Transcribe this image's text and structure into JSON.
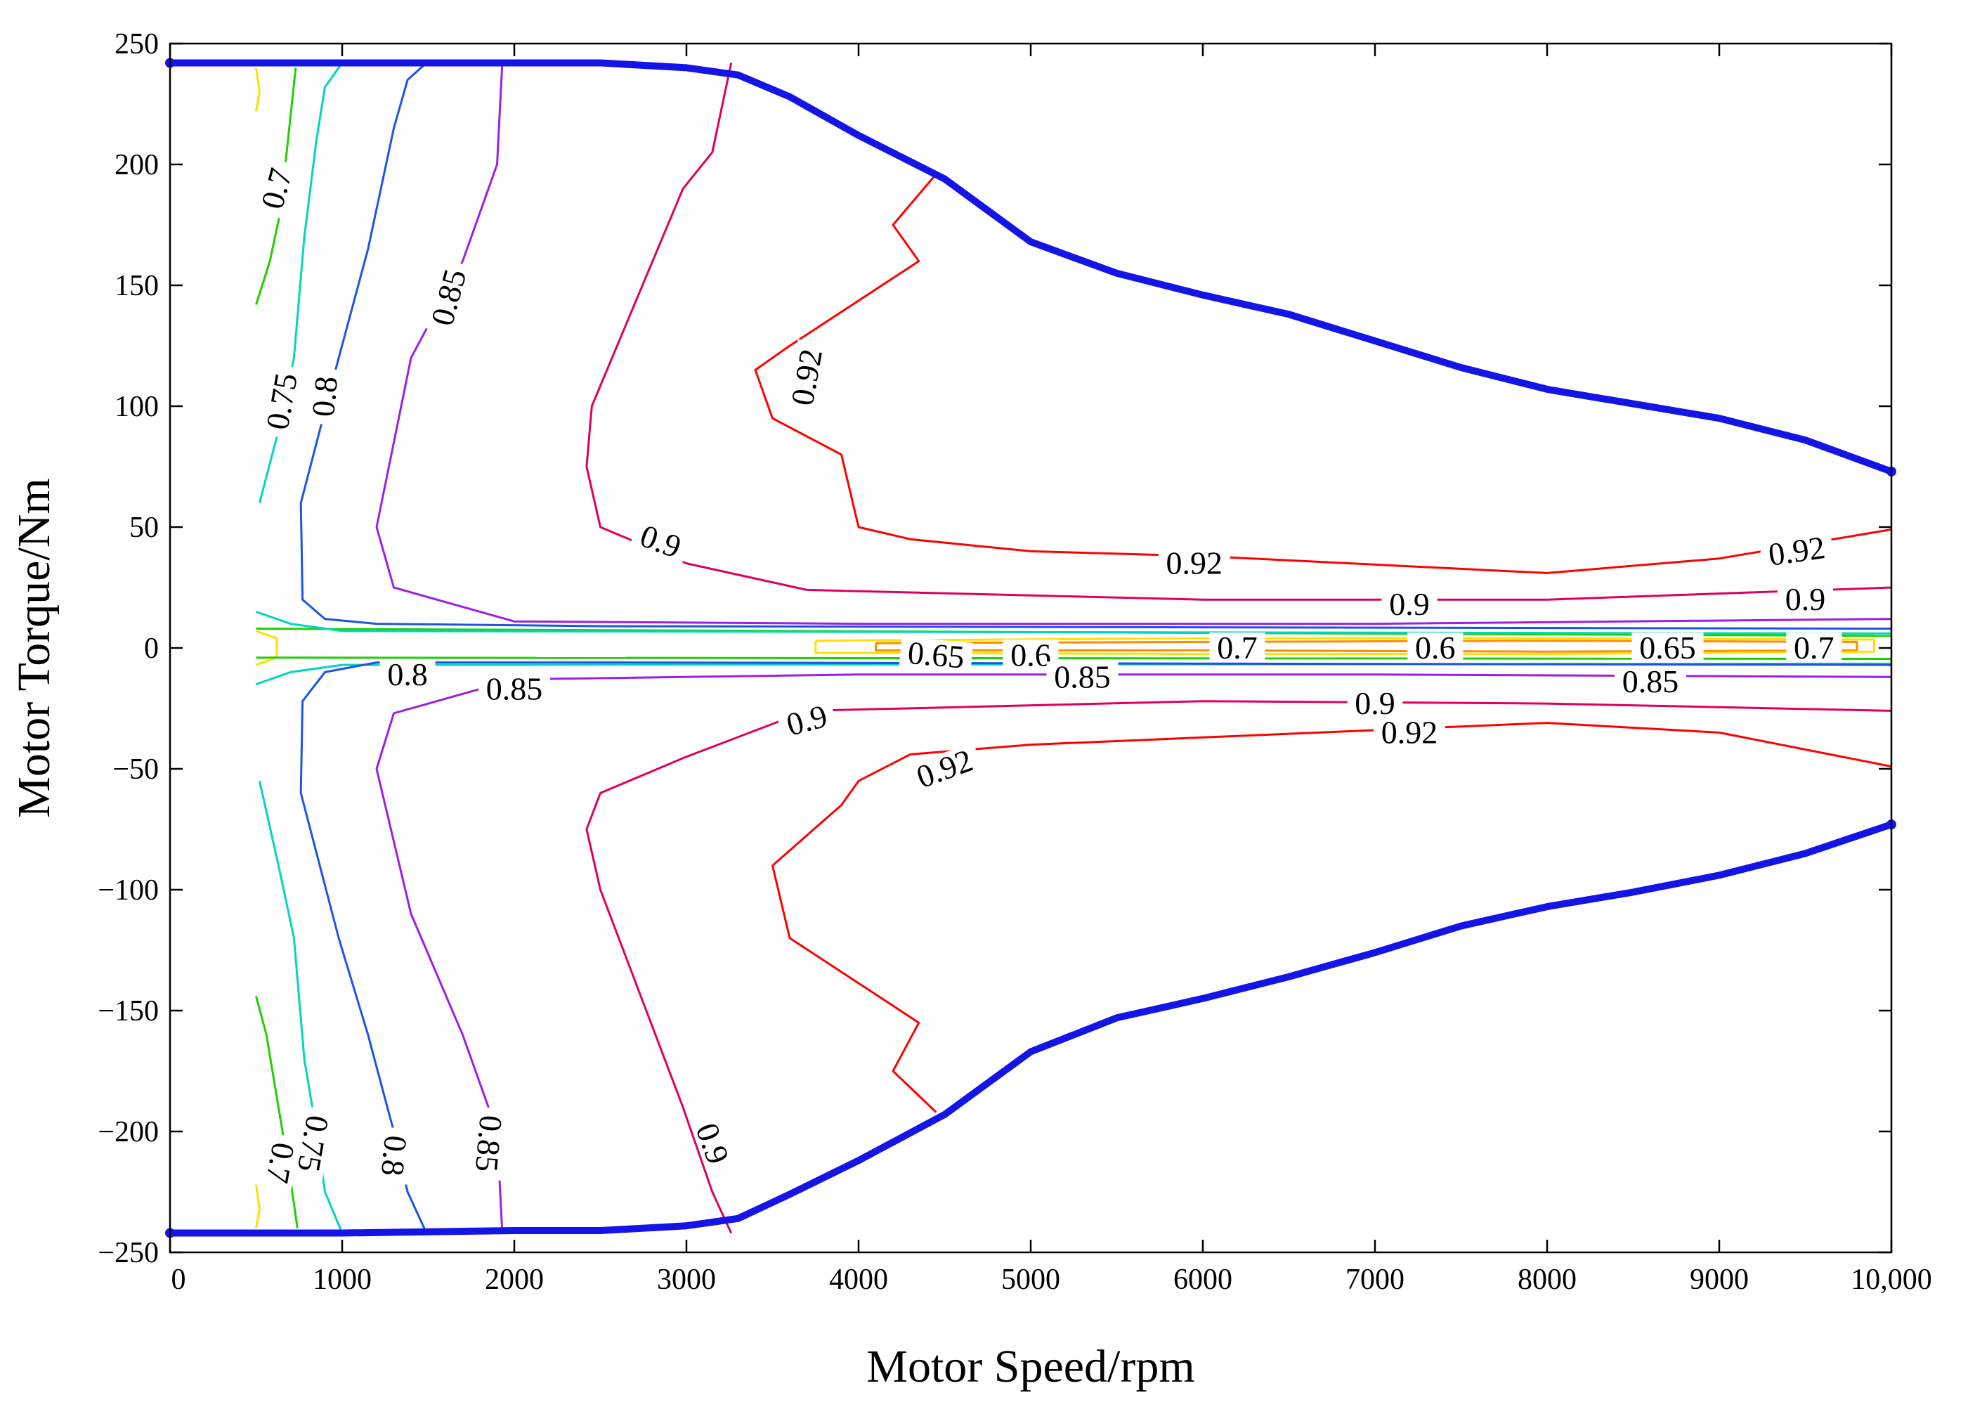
{
  "chart_data": {
    "type": "contour",
    "title": "",
    "xlabel": "Motor Speed/rpm",
    "ylabel": "Motor Torque/Nm",
    "xlim": [
      0,
      10000
    ],
    "ylim": [
      -250,
      250
    ],
    "grid": false,
    "x_ticks": [
      0,
      1000,
      2000,
      3000,
      4000,
      5000,
      6000,
      7000,
      8000,
      9000,
      10000
    ],
    "x_tick_labels": [
      "0",
      "1000",
      "2000",
      "3000",
      "4000",
      "5000",
      "6000",
      "7000",
      "8000",
      "9000",
      "10,000"
    ],
    "y_ticks": [
      250,
      200,
      150,
      100,
      50,
      0,
      -50,
      -100,
      -150,
      -200,
      -250
    ],
    "y_tick_labels": [
      "250",
      "200",
      "150",
      "100",
      "50",
      "0",
      "−50",
      "−100",
      "−150",
      "−200",
      "−250"
    ],
    "boundary": {
      "name": "peak torque envelope",
      "color": "#1414e6",
      "upper": [
        [
          0,
          242
        ],
        [
          1000,
          242
        ],
        [
          2000,
          242
        ],
        [
          2500,
          242
        ],
        [
          3000,
          240
        ],
        [
          3300,
          237
        ],
        [
          3600,
          228
        ],
        [
          4000,
          212
        ],
        [
          4500,
          194
        ],
        [
          5000,
          168
        ],
        [
          5500,
          155
        ],
        [
          6000,
          146
        ],
        [
          6500,
          138
        ],
        [
          7000,
          127
        ],
        [
          7500,
          116
        ],
        [
          8000,
          107
        ],
        [
          8500,
          101
        ],
        [
          9000,
          95
        ],
        [
          9500,
          86
        ],
        [
          10000,
          73
        ]
      ],
      "lower": [
        [
          0,
          -242
        ],
        [
          1000,
          -242
        ],
        [
          2000,
          -241
        ],
        [
          2500,
          -241
        ],
        [
          3000,
          -239
        ],
        [
          3300,
          -236
        ],
        [
          3600,
          -226
        ],
        [
          4000,
          -212
        ],
        [
          4500,
          -193
        ],
        [
          5000,
          -167
        ],
        [
          5500,
          -153
        ],
        [
          6000,
          -145
        ],
        [
          6500,
          -136
        ],
        [
          7000,
          -126
        ],
        [
          7500,
          -115
        ],
        [
          8000,
          -107
        ],
        [
          8500,
          -101
        ],
        [
          9000,
          -94
        ],
        [
          9500,
          -85
        ],
        [
          10000,
          -73
        ]
      ]
    },
    "contours": [
      {
        "level": 0.6,
        "color": "#ff8c00",
        "segments": [
          [
            [
              4100,
              2
            ],
            [
              6000,
              2.5
            ],
            [
              8000,
              3
            ],
            [
              9800,
              2.5
            ],
            [
              9800,
              -1
            ],
            [
              8000,
              -1.5
            ],
            [
              6000,
              -1
            ],
            [
              4100,
              -1
            ],
            [
              4100,
              2
            ]
          ]
        ]
      },
      {
        "level": 0.65,
        "color": "#ffe000",
        "segments": [
          [
            [
              3750,
              3
            ],
            [
              6000,
              4
            ],
            [
              8000,
              4
            ],
            [
              9900,
              3.5
            ],
            [
              9900,
              -1.5
            ],
            [
              8000,
              -2.5
            ],
            [
              6000,
              -2.5
            ],
            [
              3750,
              -2
            ],
            [
              3750,
              3
            ]
          ],
          [
            [
              500,
              240
            ],
            [
              520,
              230
            ],
            [
              500,
              222
            ]
          ],
          [
            [
              500,
              7
            ],
            [
              620,
              4
            ],
            [
              620,
              -4
            ],
            [
              500,
              -7
            ]
          ],
          [
            [
              500,
              -222
            ],
            [
              520,
              -232
            ],
            [
              500,
              -240
            ]
          ]
        ]
      },
      {
        "level": 0.7,
        "color": "#20d000",
        "segments": [
          [
            [
              730,
              240
            ],
            [
              700,
              220
            ],
            [
              640,
              180
            ],
            [
              580,
              160
            ],
            [
              500,
              142
            ]
          ],
          [
            [
              500,
              8
            ],
            [
              10000,
              5
            ]
          ],
          [
            [
              500,
              -4
            ],
            [
              10000,
              -4.5
            ]
          ],
          [
            [
              500,
              -144
            ],
            [
              560,
              -160
            ],
            [
              630,
              -190
            ],
            [
              700,
              -220
            ],
            [
              740,
              -240
            ]
          ]
        ]
      },
      {
        "level": 0.75,
        "color": "#00d6c0",
        "segments": [
          [
            [
              1000,
              242
            ],
            [
              900,
              232
            ],
            [
              850,
              210
            ],
            [
              780,
              170
            ],
            [
              720,
              120
            ],
            [
              630,
              90
            ],
            [
              520,
              60
            ]
          ],
          [
            [
              500,
              15
            ],
            [
              700,
              10
            ],
            [
              1000,
              7
            ],
            [
              10000,
              6
            ]
          ],
          [
            [
              500,
              -15
            ],
            [
              700,
              -10
            ],
            [
              1000,
              -7
            ],
            [
              10000,
              -6.5
            ]
          ],
          [
            [
              520,
              -55
            ],
            [
              630,
              -90
            ],
            [
              720,
              -120
            ],
            [
              780,
              -170
            ],
            [
              850,
              -200
            ],
            [
              900,
              -225
            ],
            [
              1000,
              -242
            ]
          ]
        ]
      },
      {
        "level": 0.8,
        "color": "#1a55e6",
        "segments": [
          [
            [
              1490,
              242
            ],
            [
              1380,
              235
            ],
            [
              1300,
              215
            ],
            [
              1150,
              165
            ],
            [
              980,
              120
            ],
            [
              760,
              60
            ],
            [
              770,
              20
            ],
            [
              900,
              12
            ],
            [
              1200,
              10
            ],
            [
              2500,
              9
            ],
            [
              10000,
              8
            ]
          ],
          [
            [
              10000,
              -7
            ],
            [
              2500,
              -6
            ],
            [
              1200,
              -6
            ],
            [
              900,
              -10
            ],
            [
              770,
              -22
            ],
            [
              760,
              -60
            ],
            [
              980,
              -120
            ],
            [
              1150,
              -160
            ],
            [
              1300,
              -200
            ],
            [
              1380,
              -225
            ],
            [
              1490,
              -242
            ]
          ]
        ]
      },
      {
        "level": 0.85,
        "color": "#9a20e6",
        "segments": [
          [
            [
              1930,
              242
            ],
            [
              1900,
              200
            ],
            [
              1700,
              160
            ],
            [
              1400,
              120
            ],
            [
              1200,
              50
            ],
            [
              1300,
              25
            ],
            [
              2000,
              11
            ],
            [
              4000,
              10
            ],
            [
              7000,
              10
            ],
            [
              10000,
              12
            ]
          ],
          [
            [
              10000,
              -12
            ],
            [
              7000,
              -11
            ],
            [
              4000,
              -11
            ],
            [
              2000,
              -13
            ],
            [
              1300,
              -27
            ],
            [
              1200,
              -50
            ],
            [
              1400,
              -110
            ],
            [
              1700,
              -160
            ],
            [
              1900,
              -200
            ],
            [
              1930,
              -242
            ]
          ]
        ]
      },
      {
        "level": 0.9,
        "color": "#e0005c",
        "segments": [
          [
            [
              3260,
              242
            ],
            [
              3150,
              205
            ],
            [
              2980,
              190
            ],
            [
              2450,
              100
            ],
            [
              2420,
              75
            ],
            [
              2500,
              50
            ],
            [
              3000,
              35
            ],
            [
              3700,
              24
            ],
            [
              6000,
              20
            ],
            [
              8000,
              20
            ],
            [
              10000,
              25
            ]
          ],
          [
            [
              10000,
              -26
            ],
            [
              8000,
              -23
            ],
            [
              6000,
              -22
            ],
            [
              3700,
              -26
            ],
            [
              3000,
              -45
            ],
            [
              2500,
              -60
            ],
            [
              2420,
              -75
            ],
            [
              2500,
              -100
            ],
            [
              2980,
              -190
            ],
            [
              3150,
              -225
            ],
            [
              3260,
              -242
            ]
          ]
        ]
      },
      {
        "level": 0.92,
        "color": "#ff0000",
        "segments": [
          [
            [
              4450,
              196
            ],
            [
              4200,
              175
            ],
            [
              4350,
              160
            ],
            [
              3600,
              125
            ],
            [
              3400,
              115
            ],
            [
              3500,
              95
            ],
            [
              3900,
              80
            ],
            [
              4000,
              50
            ],
            [
              4300,
              45
            ],
            [
              5000,
              40
            ],
            [
              6000,
              38
            ],
            [
              8000,
              31
            ],
            [
              9000,
              37
            ],
            [
              10000,
              49
            ]
          ],
          [
            [
              10000,
              -49
            ],
            [
              9000,
              -35
            ],
            [
              8000,
              -31
            ],
            [
              6000,
              -37
            ],
            [
              5000,
              -40
            ],
            [
              4300,
              -44
            ],
            [
              4000,
              -55
            ],
            [
              3900,
              -65
            ],
            [
              3500,
              -90
            ],
            [
              3600,
              -120
            ],
            [
              4350,
              -155
            ],
            [
              4200,
              -175
            ],
            [
              4450,
              -192
            ]
          ]
        ]
      }
    ],
    "labels": [
      {
        "text": "0.6",
        "x": 7350,
        "y": 0,
        "angle": 0
      },
      {
        "text": "0.6",
        "x": 5000,
        "y": -3,
        "angle": 0
      },
      {
        "text": "0.65",
        "x": 4450,
        "y": -3,
        "angle": 5
      },
      {
        "text": "0.65",
        "x": 8700,
        "y": 0,
        "angle": 0
      },
      {
        "text": "0.7",
        "x": 6200,
        "y": 0,
        "angle": 0
      },
      {
        "text": "0.7",
        "x": 9550,
        "y": 0,
        "angle": 0
      },
      {
        "text": "0.7",
        "x": 620,
        "y": 190,
        "angle": -75
      },
      {
        "text": "0.7",
        "x": 640,
        "y": -213,
        "angle": 100
      },
      {
        "text": "0.75",
        "x": 650,
        "y": 102,
        "angle": -80
      },
      {
        "text": "0.75",
        "x": 830,
        "y": -205,
        "angle": 100
      },
      {
        "text": "0.8",
        "x": 900,
        "y": 104,
        "angle": -85
      },
      {
        "text": "0.8",
        "x": 1380,
        "y": -11,
        "angle": 0
      },
      {
        "text": "0.8",
        "x": 1300,
        "y": -210,
        "angle": 95
      },
      {
        "text": "0.85",
        "x": 1620,
        "y": 145,
        "angle": -75
      },
      {
        "text": "0.85",
        "x": 2000,
        "y": -17,
        "angle": 0
      },
      {
        "text": "0.85",
        "x": 5300,
        "y": -12,
        "angle": 0
      },
      {
        "text": "0.85",
        "x": 8600,
        "y": -14,
        "angle": 0
      },
      {
        "text": "0.85",
        "x": 1850,
        "y": -205,
        "angle": 95
      },
      {
        "text": "0.9",
        "x": 2850,
        "y": 44,
        "angle": 20
      },
      {
        "text": "0.9",
        "x": 7200,
        "y": 18,
        "angle": 0
      },
      {
        "text": "0.9",
        "x": 9500,
        "y": 20,
        "angle": 0
      },
      {
        "text": "0.9",
        "x": 3700,
        "y": -30,
        "angle": -15
      },
      {
        "text": "0.9",
        "x": 7000,
        "y": -23,
        "angle": 0
      },
      {
        "text": "0.9",
        "x": 3150,
        "y": -205,
        "angle": 70
      },
      {
        "text": "0.92",
        "x": 3700,
        "y": 112,
        "angle": -80
      },
      {
        "text": "0.92",
        "x": 5950,
        "y": 35,
        "angle": 0
      },
      {
        "text": "0.92",
        "x": 9450,
        "y": 40,
        "angle": -8
      },
      {
        "text": "0.92",
        "x": 7200,
        "y": -35,
        "angle": 0
      },
      {
        "text": "0.92",
        "x": 4500,
        "y": -50,
        "angle": -20
      }
    ]
  }
}
